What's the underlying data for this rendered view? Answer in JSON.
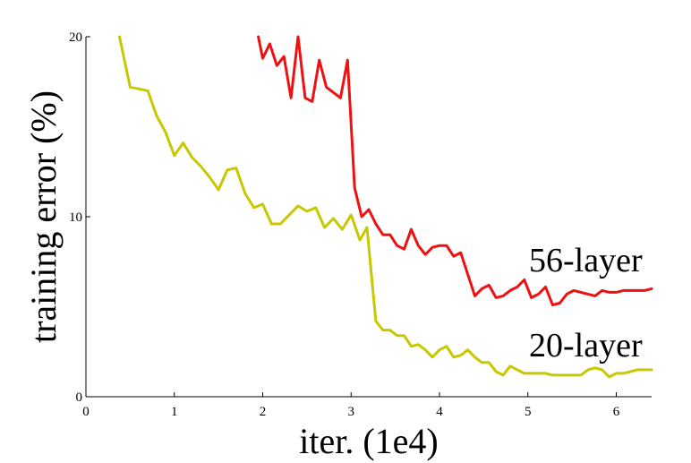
{
  "chart_data": {
    "type": "line",
    "title": "",
    "xlabel": "iter. (1e4)",
    "ylabel": "training error (%)",
    "xlim": [
      0,
      6.4
    ],
    "ylim": [
      0,
      20
    ],
    "xticks": [
      0,
      1,
      2,
      3,
      4,
      5,
      6
    ],
    "yticks": [
      0,
      10,
      20
    ],
    "grid": false,
    "series": [
      {
        "name": "56-layer",
        "color": "#ee1111",
        "x": [
          1.95,
          2.0,
          2.08,
          2.16,
          2.24,
          2.32,
          2.4,
          2.48,
          2.56,
          2.64,
          2.72,
          2.8,
          2.88,
          2.96,
          3.04,
          3.12,
          3.2,
          3.28,
          3.36,
          3.44,
          3.52,
          3.6,
          3.68,
          3.76,
          3.84,
          3.92,
          4.0,
          4.08,
          4.16,
          4.24,
          4.32,
          4.4,
          4.48,
          4.56,
          4.64,
          4.72,
          4.8,
          4.88,
          4.96,
          5.04,
          5.12,
          5.2,
          5.28,
          5.36,
          5.44,
          5.52,
          5.6,
          5.68,
          5.76,
          5.84,
          5.92,
          6.0,
          6.08,
          6.16,
          6.24,
          6.32,
          6.4
        ],
        "y": [
          20.0,
          18.8,
          19.6,
          18.4,
          18.9,
          16.6,
          20.0,
          16.6,
          16.4,
          18.7,
          17.2,
          16.9,
          16.6,
          18.7,
          11.6,
          10.0,
          10.4,
          9.6,
          9.0,
          9.0,
          8.4,
          8.2,
          9.3,
          8.4,
          7.9,
          8.3,
          8.4,
          8.4,
          7.8,
          8.0,
          6.8,
          5.6,
          6.0,
          6.2,
          5.5,
          5.6,
          5.9,
          6.1,
          6.5,
          5.5,
          5.7,
          6.1,
          5.1,
          5.2,
          5.7,
          5.9,
          5.8,
          5.7,
          5.6,
          5.9,
          5.8,
          5.8,
          5.9,
          5.9,
          5.9,
          5.9,
          6.0
        ]
      },
      {
        "name": "20-layer",
        "color": "#c8c800",
        "x": [
          0.38,
          0.5,
          0.7,
          0.8,
          0.9,
          1.0,
          1.1,
          1.2,
          1.3,
          1.4,
          1.5,
          1.6,
          1.7,
          1.8,
          1.9,
          2.0,
          2.1,
          2.2,
          2.3,
          2.4,
          2.5,
          2.6,
          2.7,
          2.8,
          2.9,
          3.0,
          3.1,
          3.18,
          3.28,
          3.36,
          3.44,
          3.52,
          3.6,
          3.68,
          3.76,
          3.84,
          3.92,
          4.0,
          4.08,
          4.16,
          4.24,
          4.32,
          4.4,
          4.48,
          4.56,
          4.64,
          4.72,
          4.8,
          4.88,
          4.96,
          5.04,
          5.12,
          5.2,
          5.28,
          5.36,
          5.44,
          5.52,
          5.6,
          5.68,
          5.76,
          5.84,
          5.92,
          6.0,
          6.08,
          6.16,
          6.24,
          6.32,
          6.4
        ],
        "y": [
          20.0,
          17.2,
          17.0,
          15.6,
          14.7,
          13.4,
          14.1,
          13.3,
          12.8,
          12.2,
          11.5,
          12.6,
          12.7,
          11.3,
          10.5,
          10.7,
          9.6,
          9.6,
          10.1,
          10.6,
          10.3,
          10.5,
          9.4,
          9.9,
          9.3,
          10.1,
          8.7,
          9.4,
          4.2,
          3.7,
          3.7,
          3.4,
          3.4,
          2.8,
          2.9,
          2.6,
          2.2,
          2.6,
          2.8,
          2.2,
          2.3,
          2.6,
          2.2,
          1.9,
          1.9,
          1.4,
          1.2,
          1.7,
          1.5,
          1.3,
          1.3,
          1.3,
          1.3,
          1.2,
          1.2,
          1.2,
          1.2,
          1.2,
          1.5,
          1.6,
          1.5,
          1.1,
          1.3,
          1.3,
          1.4,
          1.5,
          1.5,
          1.5
        ]
      }
    ]
  },
  "labels": {
    "series_56": "56-layer",
    "series_20": "20-layer"
  }
}
